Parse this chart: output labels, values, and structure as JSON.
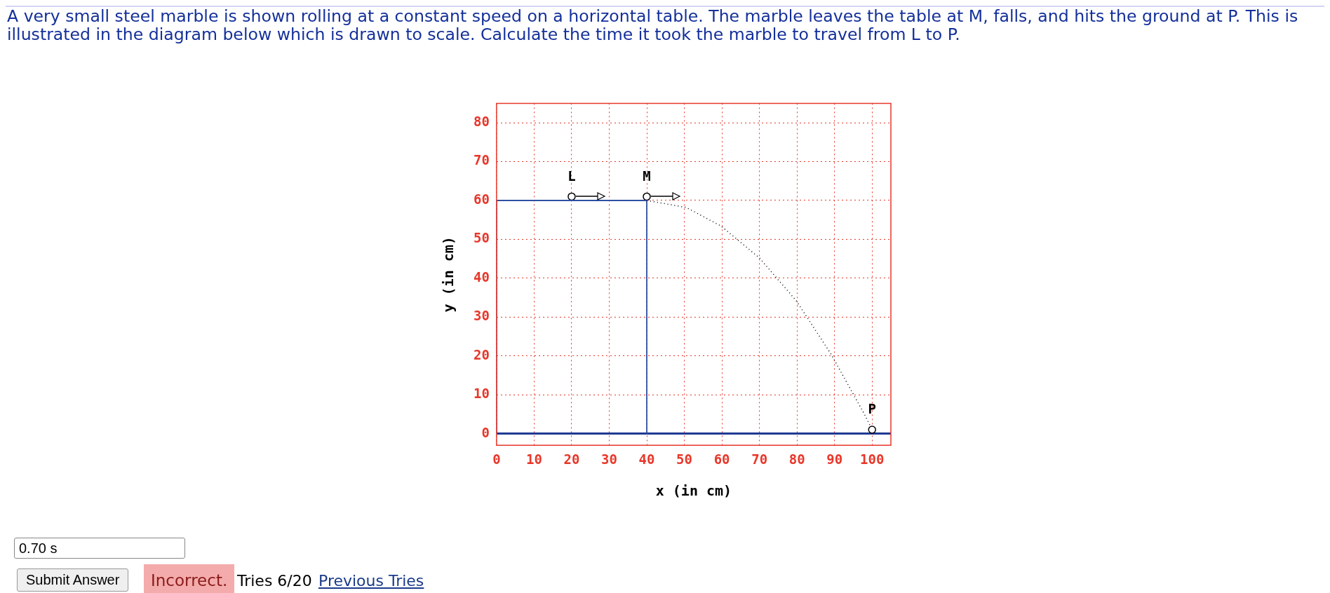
{
  "chart_data": {
    "type": "line",
    "title": "A very small steel marble is shown rolling at a constant speed on a horizontal table. The marble leaves the table at M, falls, and hits the ground at P. This is illustrated in the diagram below which is drawn to scale. Calculate the time it took the marble to travel from L to P.",
    "xlabel": "x (in cm)",
    "ylabel": "y (in cm)",
    "xlim": [
      0,
      105
    ],
    "ylim": [
      -3,
      85
    ],
    "xticks": [
      0,
      10,
      20,
      30,
      40,
      50,
      60,
      70,
      80,
      90,
      100
    ],
    "yticks": [
      0,
      10,
      20,
      30,
      40,
      50,
      60,
      70,
      80
    ],
    "grid": true,
    "series": [
      {
        "color": "#000000",
        "line_style": "dotted",
        "marker": "none",
        "x": [
          40,
          50.5,
          59.8,
          70,
          79.8,
          89.1,
          98,
          99.7
        ],
        "values": [
          60,
          58.2,
          53.4,
          45.2,
          34.2,
          20.4,
          4.9,
          1.6
        ]
      },
      {
        "color": "#2e4fa3",
        "line_style": "solid",
        "marker": "none",
        "x": [
          0,
          0,
          40,
          40
        ],
        "values": [
          0,
          60,
          60,
          0
        ]
      },
      {
        "type": "scatter",
        "color": "#000000",
        "marker": "circle",
        "x": [
          20,
          40,
          100
        ],
        "values": [
          61,
          61,
          1
        ]
      }
    ],
    "ref_lines": [
      {
        "axis": "y",
        "value": 0,
        "color": "#1f3a93"
      }
    ],
    "annotations": [
      {
        "text": "L",
        "x": 20,
        "y": 61
      },
      {
        "text": "M",
        "x": 40,
        "y": 61
      },
      {
        "text": "P",
        "x": 100,
        "y": 1
      },
      "0.70 s",
      "Submit Answer",
      "Incorrect.",
      "Tries 6/20",
      "Previous Tries"
    ]
  }
}
